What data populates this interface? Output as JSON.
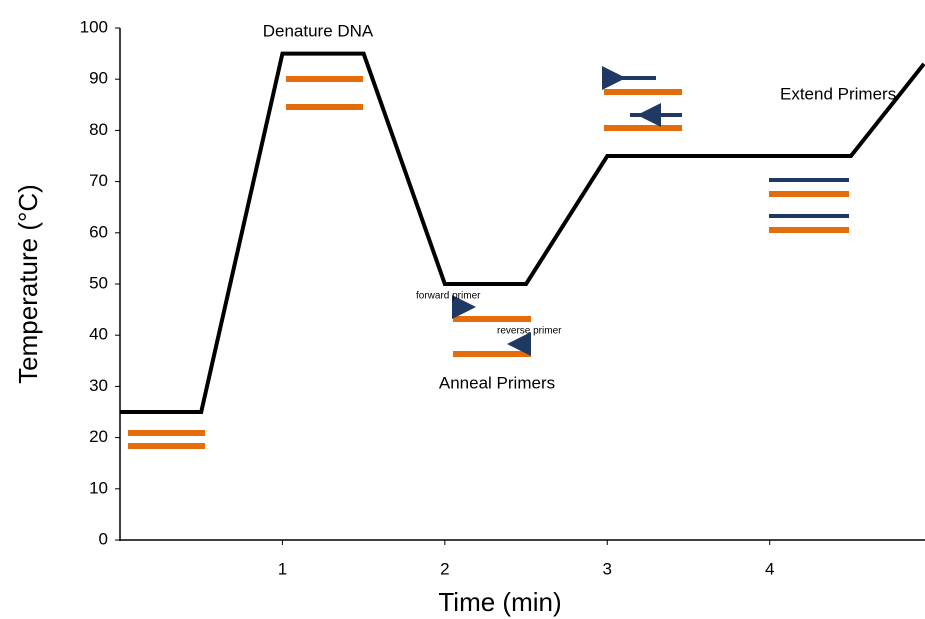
{
  "chart_data": {
    "type": "line",
    "x": [
      0,
      0.5,
      1,
      1.5,
      2,
      2.5,
      3,
      4.5,
      4.95
    ],
    "y": [
      25,
      25,
      95,
      95,
      50,
      50,
      75,
      75,
      93
    ],
    "color": "#000000",
    "xlabel": "Time (min)",
    "ylabel": "Temperature (°C)",
    "xlim": [
      0,
      4.95
    ],
    "ylim": [
      0,
      100
    ],
    "xticks": [
      1,
      2,
      3,
      4
    ],
    "yticks": [
      0,
      10,
      20,
      30,
      40,
      50,
      60,
      70,
      80,
      90,
      100
    ],
    "annotations": [
      "Denature DNA",
      "Anneal Primers",
      "Extend Primers",
      "forward primer",
      "reverse primer"
    ]
  }
}
